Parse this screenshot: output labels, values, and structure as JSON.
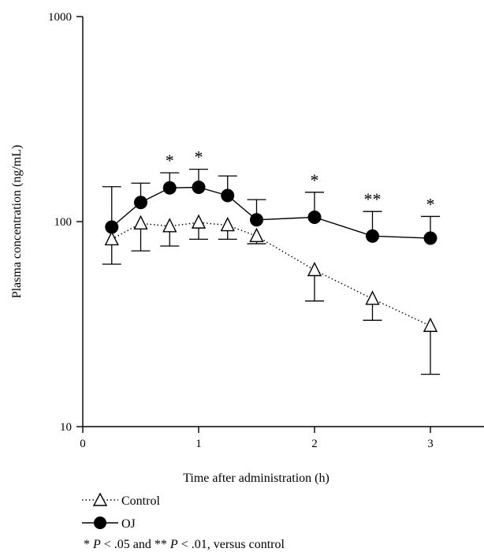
{
  "chart_data": {
    "type": "line",
    "title": "",
    "xlabel": "Time after administration (h)",
    "ylabel": "Plasma concentration (ng/mL)",
    "xlim": [
      0,
      3.4
    ],
    "ylim": [
      10,
      1000
    ],
    "yscale": "log",
    "x_ticks": [
      0,
      1,
      2,
      3
    ],
    "y_ticks": [
      10,
      100,
      1000
    ],
    "grid": false,
    "legend_position": "bottom-left",
    "series": [
      {
        "name": "Control",
        "marker": "open-triangle",
        "line_style": "dotted",
        "color": "#000000",
        "x": [
          0.25,
          0.5,
          0.75,
          1.0,
          1.25,
          1.5,
          2.0,
          2.5,
          3.0
        ],
        "y": [
          82,
          98,
          95,
          99,
          96,
          85,
          58,
          42,
          31
        ],
        "error_upper": [
          null,
          null,
          null,
          null,
          null,
          null,
          null,
          null,
          null
        ],
        "error_lower": [
          62,
          72,
          76,
          82,
          82,
          78,
          41,
          33,
          18
        ]
      },
      {
        "name": "OJ",
        "marker": "filled-circle",
        "line_style": "solid",
        "color": "#000000",
        "x": [
          0.25,
          0.5,
          0.75,
          1.0,
          1.25,
          1.5,
          2.0,
          2.5,
          3.0
        ],
        "y": [
          94,
          124,
          146,
          147,
          134,
          102,
          105,
          85,
          83
        ],
        "error_upper": [
          148,
          154,
          173,
          180,
          167,
          128,
          139,
          112,
          106
        ],
        "error_lower": [
          null,
          null,
          null,
          null,
          null,
          null,
          null,
          null,
          null
        ]
      }
    ],
    "annotations": [
      {
        "x": 0.75,
        "y": 173,
        "text": "*"
      },
      {
        "x": 1.0,
        "y": 180,
        "text": "*"
      },
      {
        "x": 2.0,
        "y": 139,
        "text": "*"
      },
      {
        "x": 2.5,
        "y": 112,
        "text": "**"
      },
      {
        "x": 3.0,
        "y": 106,
        "text": "*"
      }
    ],
    "footnote": "* P < .05 and ** P < .01, versus control"
  }
}
